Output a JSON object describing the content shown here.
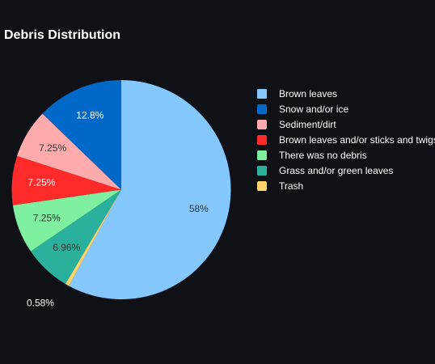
{
  "chart_data": {
    "type": "pie",
    "title": "Debris Distribution",
    "slices": [
      {
        "label": "Brown leaves",
        "value": 58,
        "display": "58%",
        "color": "#85c8ff",
        "text_color": "#333333"
      },
      {
        "label": "Trash",
        "value": 0.58,
        "display": "0.58%",
        "color": "#fdd36b",
        "text_color": "#ffffff"
      },
      {
        "label": "Grass and/or green leaves",
        "value": 6.96,
        "display": "6.96%",
        "color": "#2ab09c",
        "text_color": "#333333"
      },
      {
        "label": "There was no debris",
        "value": 7.25,
        "display": "7.25%",
        "color": "#7ff0a0",
        "text_color": "#333333"
      },
      {
        "label": "Brown leaves and/or sticks and twigs",
        "value": 7.25,
        "display": "7.25%",
        "color": "#ff2b2b",
        "text_color": "#ffffff"
      },
      {
        "label": "Sediment/dirt",
        "value": 7.25,
        "display": "7.25%",
        "color": "#ffabab",
        "text_color": "#333333"
      },
      {
        "label": "Snow and/or ice",
        "value": 12.8,
        "display": "12.8%",
        "color": "#0068c9",
        "text_color": "#ffffff"
      }
    ],
    "legend": [
      {
        "label": "Brown leaves",
        "color": "#85c8ff"
      },
      {
        "label": "Snow and/or ice",
        "color": "#0068c9"
      },
      {
        "label": "Sediment/dirt",
        "color": "#ffabab"
      },
      {
        "label": "Brown leaves and/or sticks and twigs",
        "color": "#ff2b2b"
      },
      {
        "label": "There was no debris",
        "color": "#7ff0a0"
      },
      {
        "label": "Grass and/or green leaves",
        "color": "#2ab09c"
      },
      {
        "label": "Trash",
        "color": "#fdd36b"
      }
    ],
    "legend_position": "right",
    "direction": "clockwise",
    "background": "#0f1117"
  }
}
